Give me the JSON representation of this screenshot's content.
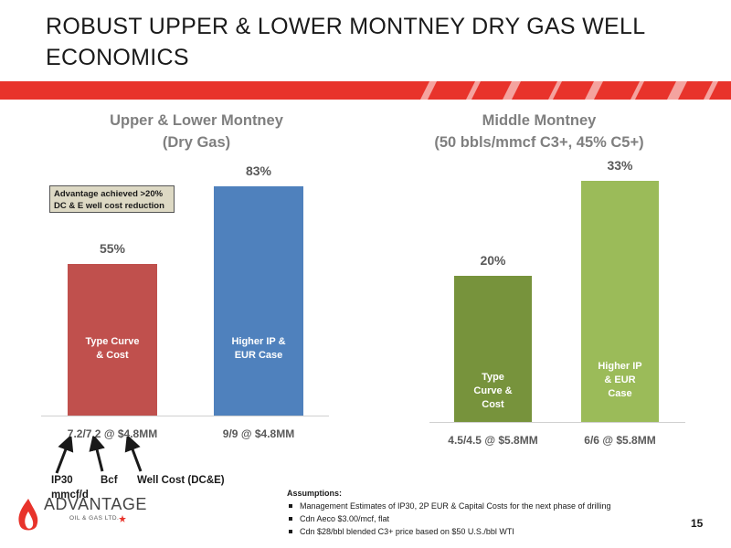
{
  "page": {
    "title": "ROBUST UPPER & LOWER MONTNEY DRY GAS WELL ECONOMICS",
    "page_number": "15"
  },
  "colors": {
    "stripe": "#e8332b",
    "bar_type_curve_upper": "#c0504d",
    "bar_higher_ip_upper": "#4f81bd",
    "bar_type_curve_middle": "#77933c",
    "bar_higher_ip_middle": "#9bbb59",
    "callout_bg": "#ddd9c4"
  },
  "chart_data": [
    {
      "type": "bar",
      "title": "Upper & Lower Montney",
      "subtitle": "(Dry Gas)",
      "categories": [
        "7.2/7.2 @ $4.8MM",
        "9/9 @ $4.8MM"
      ],
      "values": [
        55,
        83
      ],
      "data_labels": [
        "55%",
        "83%"
      ],
      "bar_labels": [
        "Type Curve & Cost",
        "Higher IP & EUR Case"
      ],
      "ylim": [
        0,
        100
      ]
    },
    {
      "type": "bar",
      "title": "Middle Montney",
      "subtitle": "(50 bbls/mmcf C3+, 45% C5+)",
      "categories": [
        "4.5/4.5 @ $5.8MM",
        "6/6 @ $5.8MM"
      ],
      "values": [
        20,
        33
      ],
      "data_labels": [
        "20%",
        "33%"
      ],
      "bar_labels": [
        "Type Curve & Cost",
        "Higher IP & EUR Case"
      ],
      "ylim": [
        0,
        50
      ]
    }
  ],
  "callout": {
    "line1": "Advantage achieved >20%",
    "line2": "DC & E well cost reduction"
  },
  "annotations": {
    "ip30": "IP30",
    "mmcfd": "mmcf/d",
    "bcf": "Bcf",
    "well_cost": "Well Cost (DC&E)"
  },
  "assumptions": {
    "heading": "Assumptions:",
    "items": [
      "Management Estimates of IP30, 2P EUR & Capital Costs for the next phase of drilling",
      "Cdn Aeco $3.00/mcf, flat",
      "Cdn $28/bbl blended C3+ price based on $50 U.S./bbl WTI"
    ]
  },
  "logo": {
    "name": "ADVANTAGE",
    "sub": "OIL & GAS LTD."
  }
}
